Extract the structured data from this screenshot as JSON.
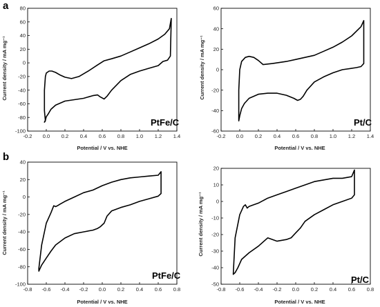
{
  "panel_labels": [
    "a",
    "b"
  ],
  "chart_data": [
    {
      "type": "line",
      "annotation": "PtFe/C",
      "xlabel": "Potential / V vs. NHE",
      "ylabel": "Current density / mA mg⁻¹",
      "xlim": [
        -0.2,
        1.4
      ],
      "ylim": [
        -100,
        80
      ],
      "xticks": [
        "-0.2",
        "0.0",
        "0.2",
        "0.4",
        "0.6",
        "0.8",
        "1.0",
        "1.2",
        "1.4"
      ],
      "yticks": [
        "-100",
        "-80",
        "-60",
        "-40",
        "-20",
        "0",
        "20",
        "40",
        "60",
        "80"
      ],
      "series": [
        {
          "x": [
            -0.01,
            -0.02,
            -0.02,
            -0.01,
            0.0,
            0.03,
            0.06,
            0.1,
            0.15,
            0.2,
            0.27,
            0.35,
            0.45,
            0.55,
            0.62,
            0.7,
            0.8,
            0.9,
            1.0,
            1.1,
            1.2,
            1.27,
            1.32,
            1.34,
            1.33,
            1.3,
            1.25,
            1.2,
            1.1,
            1.0,
            0.9,
            0.8,
            0.7,
            0.65,
            0.62,
            0.58,
            0.55,
            0.5,
            0.4,
            0.3,
            0.2,
            0.1,
            0.05,
            0.02,
            0.0,
            -0.01,
            -0.02,
            -0.01
          ],
          "y": [
            -85,
            -70,
            -40,
            -20,
            -15,
            -12,
            -12,
            -14,
            -18,
            -21,
            -23,
            -20,
            -12,
            -3,
            3,
            6,
            10,
            16,
            22,
            28,
            35,
            42,
            50,
            65,
            10,
            4,
            2,
            -4,
            -8,
            -12,
            -17,
            -26,
            -40,
            -49,
            -53,
            -50,
            -47,
            -48,
            -52,
            -54,
            -56,
            -62,
            -68,
            -75,
            -79,
            -84,
            -87,
            -85
          ]
        }
      ]
    },
    {
      "type": "line",
      "annotation": "Pt/C",
      "xlabel": "Potential / V vs. NHE",
      "ylabel": "Current density / mA mg⁻¹",
      "xlim": [
        -0.2,
        1.4
      ],
      "ylim": [
        -60,
        60
      ],
      "xticks": [
        "-0.2",
        "0.0",
        "0.2",
        "0.4",
        "0.6",
        "0.8",
        "1.0",
        "1.2",
        "1.4"
      ],
      "yticks": [
        "-60",
        "-40",
        "-20",
        "0",
        "20",
        "40",
        "60"
      ],
      "series": [
        {
          "x": [
            -0.01,
            -0.01,
            0.0,
            0.02,
            0.06,
            0.1,
            0.15,
            0.2,
            0.25,
            0.35,
            0.5,
            0.6,
            0.7,
            0.8,
            0.9,
            1.0,
            1.1,
            1.2,
            1.3,
            1.33,
            1.33,
            1.3,
            1.25,
            1.1,
            1.0,
            0.9,
            0.8,
            0.72,
            0.68,
            0.65,
            0.62,
            0.58,
            0.5,
            0.4,
            0.3,
            0.2,
            0.1,
            0.05,
            0.02,
            0.0,
            -0.01
          ],
          "y": [
            -50,
            -20,
            0,
            8,
            12,
            13,
            12,
            9,
            5,
            6,
            8,
            10,
            12,
            14,
            18,
            22,
            27,
            33,
            42,
            48,
            6,
            3,
            2,
            0,
            -3,
            -7,
            -12,
            -20,
            -26,
            -29,
            -30,
            -28,
            -25,
            -23,
            -23,
            -24,
            -28,
            -33,
            -38,
            -45,
            -50
          ]
        }
      ]
    },
    {
      "type": "line",
      "annotation": "PtFe/C",
      "xlabel": "Potential / V vs. NHE",
      "ylabel": "Current density / mA mg⁻¹",
      "xlim": [
        -0.8,
        0.8
      ],
      "ylim": [
        -100,
        40
      ],
      "xticks": [
        "-0.8",
        "-0.6",
        "-0.4",
        "-0.2",
        "0.0",
        "0.2",
        "0.4",
        "0.6",
        "0.8"
      ],
      "yticks": [
        "-100",
        "-80",
        "-60",
        "-40",
        "-20",
        "0",
        "20",
        "40"
      ],
      "series": [
        {
          "x": [
            -0.68,
            -0.65,
            -0.6,
            -0.55,
            -0.52,
            -0.5,
            -0.48,
            -0.45,
            -0.4,
            -0.3,
            -0.2,
            -0.1,
            0.0,
            0.1,
            0.2,
            0.3,
            0.4,
            0.5,
            0.6,
            0.63,
            0.63,
            0.6,
            0.5,
            0.4,
            0.3,
            0.2,
            0.1,
            0.05,
            0.02,
            0.0,
            -0.02,
            -0.05,
            -0.1,
            -0.2,
            -0.3,
            -0.4,
            -0.5,
            -0.55,
            -0.6,
            -0.65,
            -0.68
          ],
          "y": [
            -82,
            -55,
            -30,
            -18,
            -10,
            -11,
            -10,
            -8,
            -5,
            0,
            5,
            8,
            13,
            17,
            20,
            22,
            23,
            24,
            25,
            29,
            4,
            1,
            -2,
            -5,
            -9,
            -12,
            -16,
            -22,
            -30,
            -32,
            -34,
            -36,
            -38,
            -40,
            -42,
            -47,
            -55,
            -62,
            -70,
            -78,
            -85
          ]
        }
      ]
    },
    {
      "type": "line",
      "annotation": "Pt/C",
      "xlabel": "Potential / V vs. NHE",
      "ylabel": "Current density / mA mg⁻¹",
      "xlim": [
        -0.8,
        0.8
      ],
      "ylim": [
        -50,
        20
      ],
      "xticks": [
        "-0.8",
        "-0.6",
        "-0.4",
        "-0.2",
        "0.0",
        "0.2",
        "0.4",
        "0.6",
        "0.8"
      ],
      "yticks": [
        "-50",
        "-40",
        "-30",
        "-20",
        "-10",
        "0",
        "10",
        "20"
      ],
      "series": [
        {
          "x": [
            -0.67,
            -0.65,
            -0.6,
            -0.56,
            -0.54,
            -0.52,
            -0.5,
            -0.45,
            -0.4,
            -0.3,
            -0.2,
            -0.1,
            0.0,
            0.1,
            0.2,
            0.3,
            0.4,
            0.5,
            0.6,
            0.63,
            0.63,
            0.6,
            0.5,
            0.4,
            0.3,
            0.2,
            0.1,
            0.05,
            0.0,
            -0.05,
            -0.1,
            -0.2,
            -0.3,
            -0.4,
            -0.5,
            -0.58,
            -0.62,
            -0.65,
            -0.67
          ],
          "y": [
            -44,
            -22,
            -8,
            -3,
            -2,
            -4,
            -3,
            -2,
            -1,
            2,
            4,
            6,
            8,
            10,
            12,
            13,
            14,
            14,
            15,
            19,
            4,
            2,
            0,
            -2,
            -5,
            -8,
            -12,
            -16,
            -19,
            -22,
            -23,
            -24,
            -22,
            -27,
            -31,
            -35,
            -40,
            -43,
            -44
          ]
        }
      ]
    }
  ]
}
